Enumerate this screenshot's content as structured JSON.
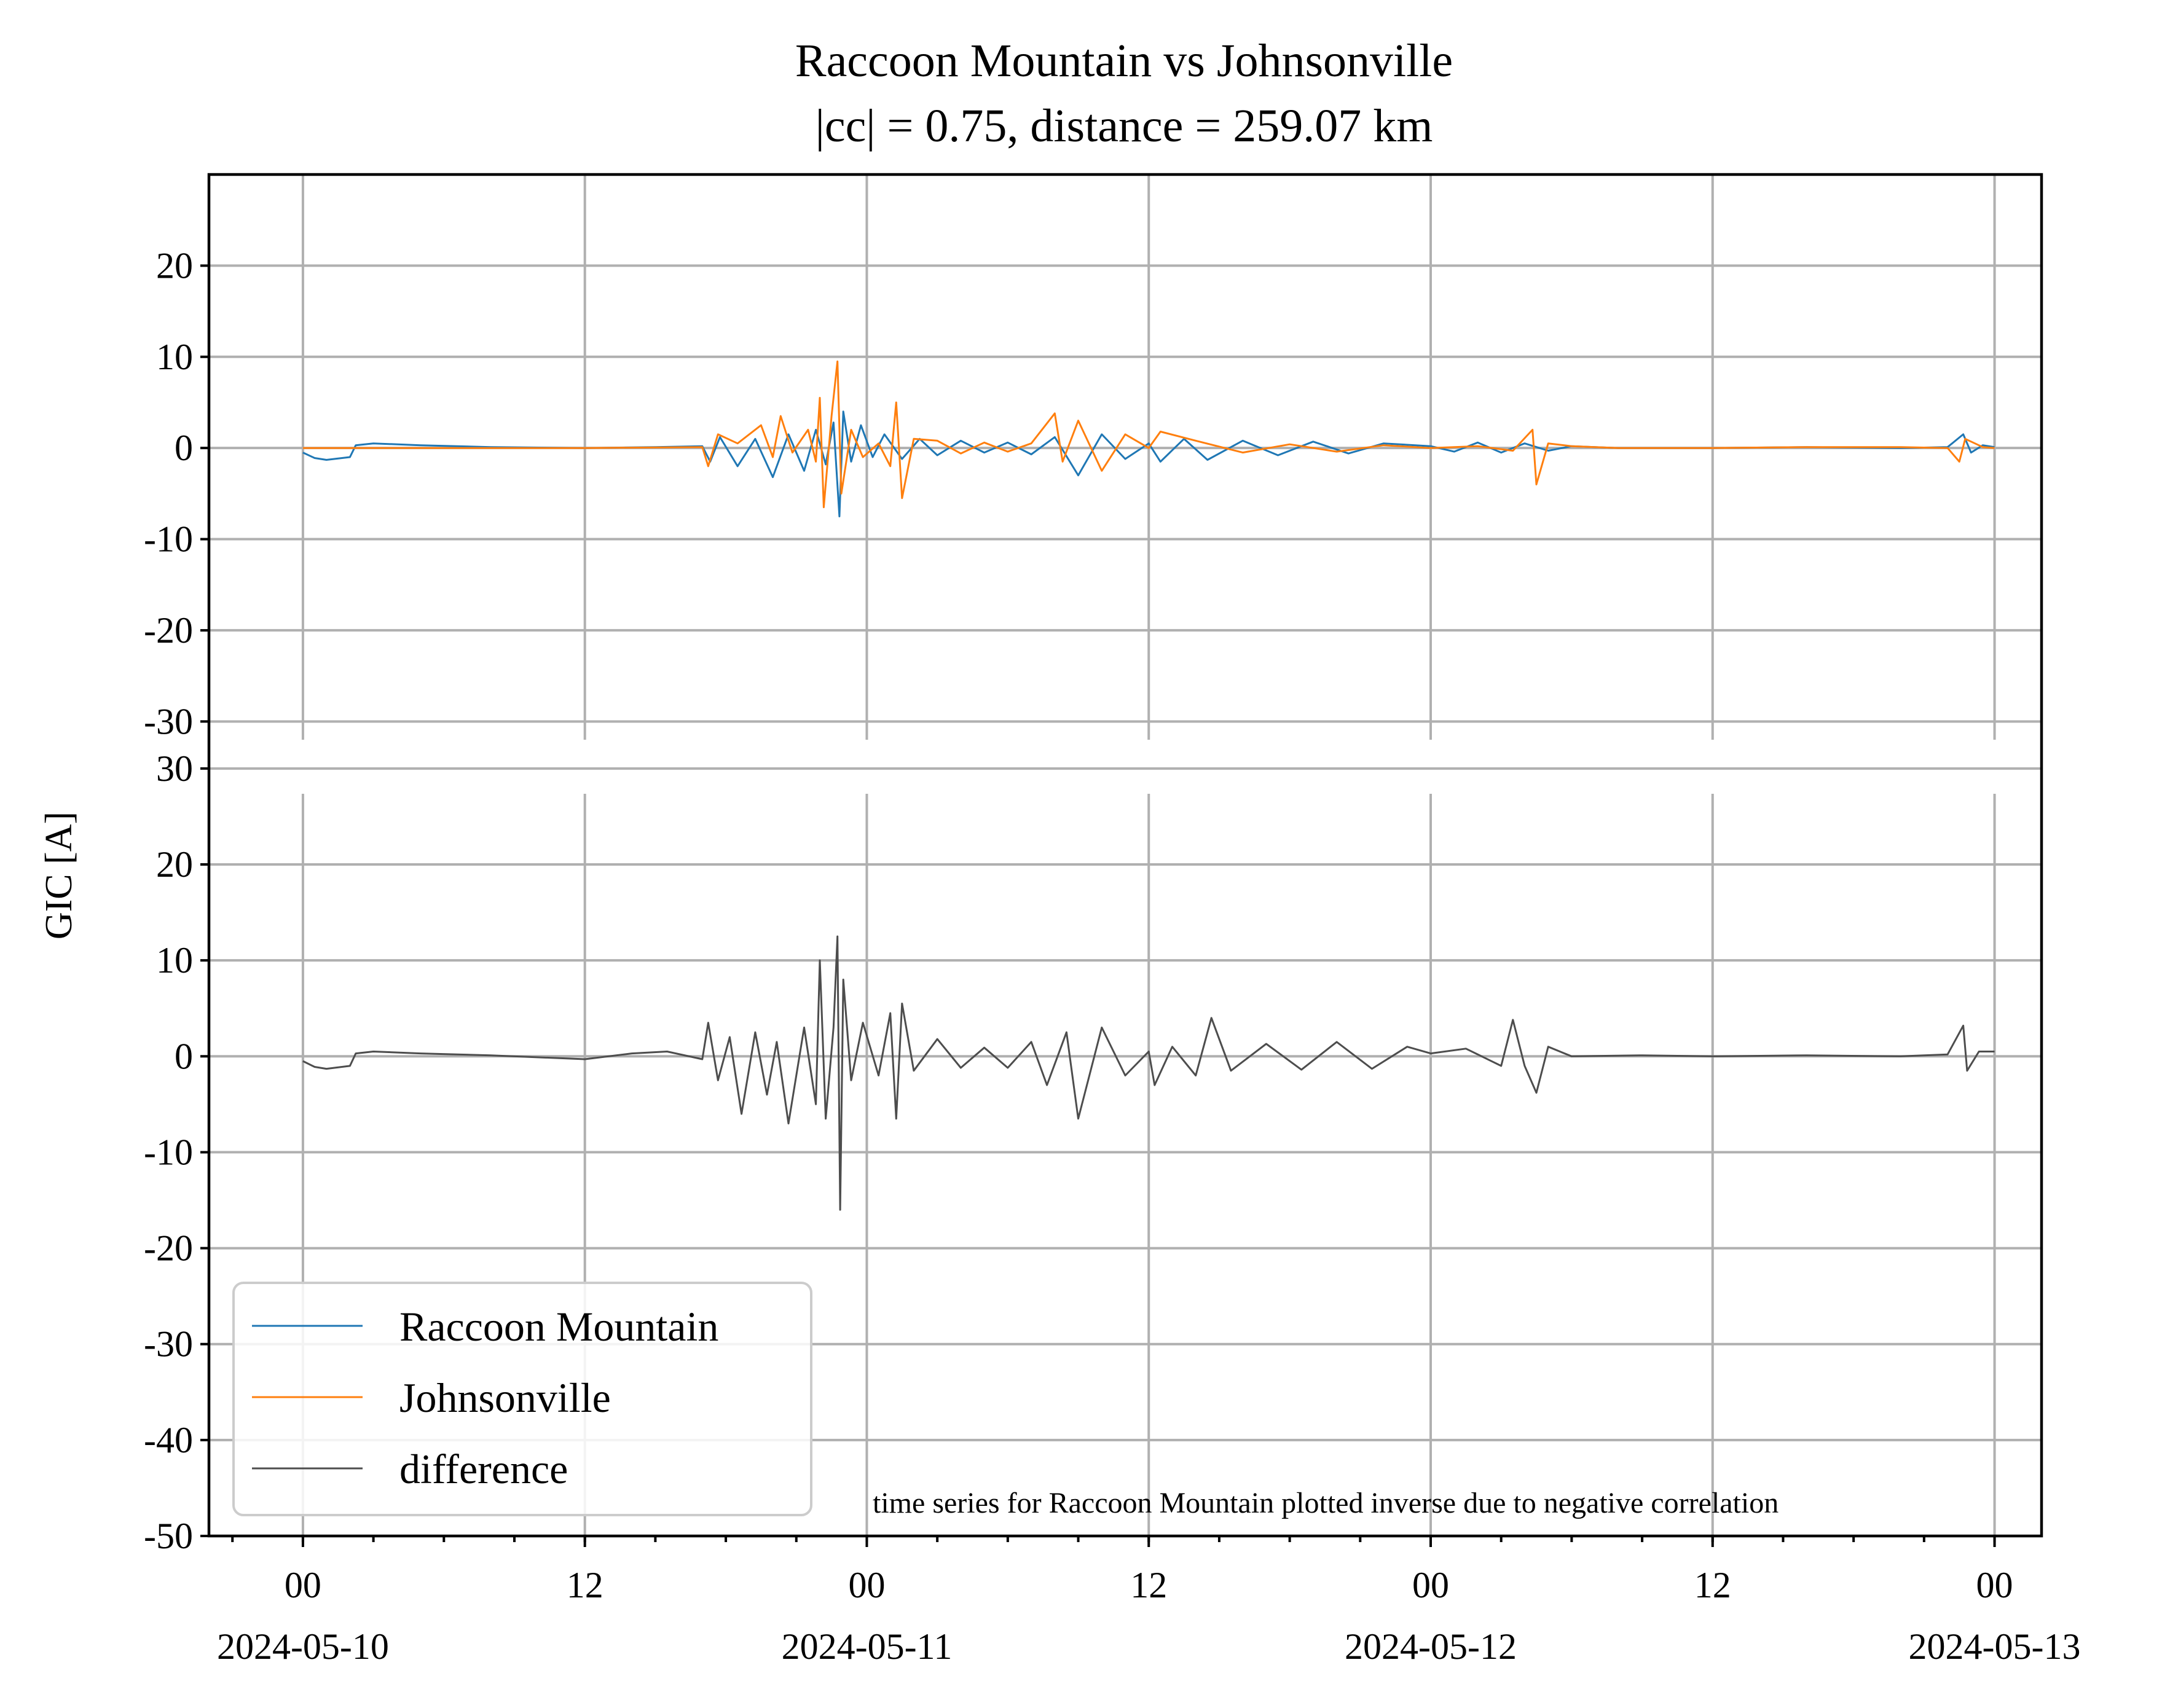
{
  "chart_data": {
    "type": "line",
    "title": "Raccoon Mountain vs Johnsonville",
    "subtitle": "|cc| = 0.75, distance = 259.07 km",
    "ylabel": "GIC [A]",
    "note": "time series for Raccoon Mountain plotted inverse due to negative correlation",
    "x_range": [
      "2024-05-09T20:00",
      "2024-05-13T02:00"
    ],
    "x_major_ticks": [
      {
        "value": "2024-05-10T00:00",
        "label": "00",
        "date": "2024-05-10"
      },
      {
        "value": "2024-05-10T12:00",
        "label": "12",
        "date": ""
      },
      {
        "value": "2024-05-11T00:00",
        "label": "00",
        "date": "2024-05-11"
      },
      {
        "value": "2024-05-11T12:00",
        "label": "12",
        "date": ""
      },
      {
        "value": "2024-05-12T00:00",
        "label": "00",
        "date": "2024-05-12"
      },
      {
        "value": "2024-05-12T12:00",
        "label": "12",
        "date": ""
      },
      {
        "value": "2024-05-13T00:00",
        "label": "00",
        "date": "2024-05-13"
      }
    ],
    "grid": true,
    "legend": {
      "placement": "lower-left",
      "entries": [
        {
          "label": "Raccoon Mountain",
          "color": "#1f77b4"
        },
        {
          "label": "Johnsonville",
          "color": "#ff7f0e"
        },
        {
          "label": "difference",
          "color": "#4d4d4d"
        }
      ]
    },
    "panels": [
      {
        "ylim": [
          -32,
          30
        ],
        "yticks": [
          20,
          10,
          0,
          -10,
          -20,
          -30
        ],
        "ytick_labels": [
          "20",
          "10",
          "0",
          "-10",
          "-20",
          "-30"
        ],
        "series": [
          {
            "name": "Raccoon Mountain",
            "color": "#1f77b4",
            "points": [
              [
                "2024-05-10T00:00",
                -0.5
              ],
              [
                "2024-05-10T00:30",
                -1.1
              ],
              [
                "2024-05-10T01:00",
                -1.3
              ],
              [
                "2024-05-10T02:00",
                -1.0
              ],
              [
                "2024-05-10T02:15",
                0.3
              ],
              [
                "2024-05-10T03:00",
                0.5
              ],
              [
                "2024-05-10T05:00",
                0.3
              ],
              [
                "2024-05-10T08:00",
                0.1
              ],
              [
                "2024-05-10T12:00",
                0.0
              ],
              [
                "2024-05-10T15:00",
                0.1
              ],
              [
                "2024-05-10T17:00",
                0.2
              ],
              [
                "2024-05-10T17:20",
                -1.5
              ],
              [
                "2024-05-10T17:45",
                1.2
              ],
              [
                "2024-05-10T18:30",
                -2.0
              ],
              [
                "2024-05-10T19:15",
                1.0
              ],
              [
                "2024-05-10T20:00",
                -3.2
              ],
              [
                "2024-05-10T20:40",
                1.5
              ],
              [
                "2024-05-10T21:20",
                -2.5
              ],
              [
                "2024-05-10T21:50",
                2.0
              ],
              [
                "2024-05-10T22:15",
                -1.8
              ],
              [
                "2024-05-10T22:35",
                2.8
              ],
              [
                "2024-05-10T22:50",
                -7.5
              ],
              [
                "2024-05-10T23:00",
                4.0
              ],
              [
                "2024-05-10T23:20",
                -1.5
              ],
              [
                "2024-05-10T23:45",
                2.5
              ],
              [
                "2024-05-11T00:15",
                -1.0
              ],
              [
                "2024-05-11T00:45",
                1.5
              ],
              [
                "2024-05-11T01:30",
                -1.2
              ],
              [
                "2024-05-11T02:15",
                1.0
              ],
              [
                "2024-05-11T03:00",
                -0.8
              ],
              [
                "2024-05-11T04:00",
                0.8
              ],
              [
                "2024-05-11T05:00",
                -0.5
              ],
              [
                "2024-05-11T06:00",
                0.6
              ],
              [
                "2024-05-11T07:00",
                -0.7
              ],
              [
                "2024-05-11T08:00",
                1.2
              ],
              [
                "2024-05-11T09:00",
                -3.0
              ],
              [
                "2024-05-11T10:00",
                1.5
              ],
              [
                "2024-05-11T11:00",
                -1.2
              ],
              [
                "2024-05-11T12:00",
                0.5
              ],
              [
                "2024-05-11T12:30",
                -1.5
              ],
              [
                "2024-05-11T13:30",
                1.0
              ],
              [
                "2024-05-11T14:30",
                -1.3
              ],
              [
                "2024-05-11T16:00",
                0.8
              ],
              [
                "2024-05-11T17:30",
                -0.8
              ],
              [
                "2024-05-11T19:00",
                0.7
              ],
              [
                "2024-05-11T20:30",
                -0.6
              ],
              [
                "2024-05-11T22:00",
                0.5
              ],
              [
                "2024-05-12T00:00",
                0.2
              ],
              [
                "2024-05-12T01:00",
                -0.4
              ],
              [
                "2024-05-12T02:00",
                0.6
              ],
              [
                "2024-05-12T03:00",
                -0.5
              ],
              [
                "2024-05-12T04:00",
                0.5
              ],
              [
                "2024-05-12T05:00",
                -0.3
              ],
              [
                "2024-05-12T06:00",
                0.2
              ],
              [
                "2024-05-12T08:00",
                0.0
              ],
              [
                "2024-05-12T12:00",
                0.0
              ],
              [
                "2024-05-12T16:00",
                0.1
              ],
              [
                "2024-05-12T20:00",
                0.0
              ],
              [
                "2024-05-12T22:00",
                0.1
              ],
              [
                "2024-05-12T22:40",
                1.5
              ],
              [
                "2024-05-12T23:00",
                -0.5
              ],
              [
                "2024-05-12T23:30",
                0.3
              ],
              [
                "2024-05-13T00:00",
                0.1
              ]
            ]
          },
          {
            "name": "Johnsonville",
            "color": "#ff7f0e",
            "points": [
              [
                "2024-05-10T00:00",
                0.0
              ],
              [
                "2024-05-10T06:00",
                0.0
              ],
              [
                "2024-05-10T12:00",
                0.0
              ],
              [
                "2024-05-10T17:00",
                0.1
              ],
              [
                "2024-05-10T17:15",
                -2.0
              ],
              [
                "2024-05-10T17:40",
                1.5
              ],
              [
                "2024-05-10T18:30",
                0.5
              ],
              [
                "2024-05-10T19:30",
                2.5
              ],
              [
                "2024-05-10T20:00",
                -1.0
              ],
              [
                "2024-05-10T20:20",
                3.5
              ],
              [
                "2024-05-10T20:50",
                -0.5
              ],
              [
                "2024-05-10T21:30",
                2.0
              ],
              [
                "2024-05-10T21:50",
                -1.5
              ],
              [
                "2024-05-10T22:00",
                5.5
              ],
              [
                "2024-05-10T22:10",
                -6.5
              ],
              [
                "2024-05-10T22:30",
                3.5
              ],
              [
                "2024-05-10T22:45",
                9.5
              ],
              [
                "2024-05-10T22:55",
                -5.0
              ],
              [
                "2024-05-10T23:20",
                2.0
              ],
              [
                "2024-05-10T23:50",
                -1.0
              ],
              [
                "2024-05-11T00:30",
                0.5
              ],
              [
                "2024-05-11T01:00",
                -2.0
              ],
              [
                "2024-05-11T01:15",
                5.0
              ],
              [
                "2024-05-11T01:30",
                -5.5
              ],
              [
                "2024-05-11T02:00",
                1.0
              ],
              [
                "2024-05-11T03:00",
                0.8
              ],
              [
                "2024-05-11T04:00",
                -0.6
              ],
              [
                "2024-05-11T05:00",
                0.6
              ],
              [
                "2024-05-11T06:00",
                -0.4
              ],
              [
                "2024-05-11T07:00",
                0.5
              ],
              [
                "2024-05-11T08:00",
                3.8
              ],
              [
                "2024-05-11T08:20",
                -1.5
              ],
              [
                "2024-05-11T09:00",
                3.0
              ],
              [
                "2024-05-11T10:00",
                -2.5
              ],
              [
                "2024-05-11T11:00",
                1.5
              ],
              [
                "2024-05-11T12:00",
                0.0
              ],
              [
                "2024-05-11T12:30",
                1.8
              ],
              [
                "2024-05-11T14:00",
                0.8
              ],
              [
                "2024-05-11T16:00",
                -0.5
              ],
              [
                "2024-05-11T18:00",
                0.4
              ],
              [
                "2024-05-11T20:00",
                -0.4
              ],
              [
                "2024-05-11T22:00",
                0.3
              ],
              [
                "2024-05-12T00:00",
                0.0
              ],
              [
                "2024-05-12T02:00",
                0.2
              ],
              [
                "2024-05-12T03:30",
                -0.3
              ],
              [
                "2024-05-12T04:20",
                2.0
              ],
              [
                "2024-05-12T04:30",
                -4.0
              ],
              [
                "2024-05-12T05:00",
                0.5
              ],
              [
                "2024-05-12T06:00",
                0.2
              ],
              [
                "2024-05-12T08:00",
                0.0
              ],
              [
                "2024-05-12T12:00",
                0.0
              ],
              [
                "2024-05-12T16:00",
                0.1
              ],
              [
                "2024-05-12T20:00",
                0.1
              ],
              [
                "2024-05-12T22:00",
                0.0
              ],
              [
                "2024-05-12T22:30",
                -1.5
              ],
              [
                "2024-05-12T22:45",
                1.0
              ],
              [
                "2024-05-12T23:30",
                0.1
              ],
              [
                "2024-05-13T00:00",
                0.0
              ]
            ]
          }
        ]
      },
      {
        "ylim": [
          -50,
          33
        ],
        "yticks": [
          30,
          20,
          10,
          0,
          -10,
          -20,
          -30,
          -40,
          -50
        ],
        "ytick_labels": [
          "30",
          "20",
          "10",
          "0",
          "-10",
          "-20",
          "-30",
          "-40",
          "-50"
        ],
        "series": [
          {
            "name": "difference",
            "color": "#4d4d4d",
            "points": [
              [
                "2024-05-10T00:00",
                -0.5
              ],
              [
                "2024-05-10T00:30",
                -1.1
              ],
              [
                "2024-05-10T01:00",
                -1.3
              ],
              [
                "2024-05-10T02:00",
                -1.0
              ],
              [
                "2024-05-10T02:15",
                0.3
              ],
              [
                "2024-05-10T03:00",
                0.5
              ],
              [
                "2024-05-10T05:00",
                0.3
              ],
              [
                "2024-05-10T08:00",
                0.1
              ],
              [
                "2024-05-10T12:00",
                -0.3
              ],
              [
                "2024-05-10T14:00",
                0.3
              ],
              [
                "2024-05-10T15:30",
                0.5
              ],
              [
                "2024-05-10T17:00",
                -0.3
              ],
              [
                "2024-05-10T17:15",
                3.5
              ],
              [
                "2024-05-10T17:40",
                -2.5
              ],
              [
                "2024-05-10T18:10",
                2.0
              ],
              [
                "2024-05-10T18:40",
                -6.0
              ],
              [
                "2024-05-10T19:15",
                2.5
              ],
              [
                "2024-05-10T19:45",
                -4.0
              ],
              [
                "2024-05-10T20:10",
                1.5
              ],
              [
                "2024-05-10T20:40",
                -7.0
              ],
              [
                "2024-05-10T21:20",
                3.0
              ],
              [
                "2024-05-10T21:50",
                -5.0
              ],
              [
                "2024-05-10T22:00",
                10.0
              ],
              [
                "2024-05-10T22:15",
                -6.5
              ],
              [
                "2024-05-10T22:35",
                3.0
              ],
              [
                "2024-05-10T22:45",
                12.5
              ],
              [
                "2024-05-10T22:52",
                -16.0
              ],
              [
                "2024-05-10T23:00",
                8.0
              ],
              [
                "2024-05-10T23:20",
                -2.5
              ],
              [
                "2024-05-10T23:50",
                3.5
              ],
              [
                "2024-05-11T00:30",
                -2.0
              ],
              [
                "2024-05-11T01:00",
                4.5
              ],
              [
                "2024-05-11T01:15",
                -6.5
              ],
              [
                "2024-05-11T01:30",
                5.5
              ],
              [
                "2024-05-11T02:00",
                -1.5
              ],
              [
                "2024-05-11T03:00",
                1.8
              ],
              [
                "2024-05-11T04:00",
                -1.2
              ],
              [
                "2024-05-11T05:00",
                0.9
              ],
              [
                "2024-05-11T06:00",
                -1.2
              ],
              [
                "2024-05-11T07:00",
                1.5
              ],
              [
                "2024-05-11T07:40",
                -3.0
              ],
              [
                "2024-05-11T08:30",
                2.5
              ],
              [
                "2024-05-11T09:00",
                -6.5
              ],
              [
                "2024-05-11T10:00",
                3.0
              ],
              [
                "2024-05-11T11:00",
                -2.0
              ],
              [
                "2024-05-11T12:00",
                0.5
              ],
              [
                "2024-05-11T12:15",
                -3.0
              ],
              [
                "2024-05-11T13:00",
                1.0
              ],
              [
                "2024-05-11T14:00",
                -2.0
              ],
              [
                "2024-05-11T14:40",
                4.0
              ],
              [
                "2024-05-11T15:30",
                -1.5
              ],
              [
                "2024-05-11T17:00",
                1.3
              ],
              [
                "2024-05-11T18:30",
                -1.4
              ],
              [
                "2024-05-11T20:00",
                1.5
              ],
              [
                "2024-05-11T21:30",
                -1.3
              ],
              [
                "2024-05-11T23:00",
                1.0
              ],
              [
                "2024-05-12T00:00",
                0.3
              ],
              [
                "2024-05-12T01:30",
                0.8
              ],
              [
                "2024-05-12T03:00",
                -1.0
              ],
              [
                "2024-05-12T03:30",
                3.8
              ],
              [
                "2024-05-12T04:00",
                -1.0
              ],
              [
                "2024-05-12T04:30",
                -3.8
              ],
              [
                "2024-05-12T05:00",
                1.0
              ],
              [
                "2024-05-12T06:00",
                0.0
              ],
              [
                "2024-05-12T09:00",
                0.1
              ],
              [
                "2024-05-12T12:00",
                0.0
              ],
              [
                "2024-05-12T16:00",
                0.1
              ],
              [
                "2024-05-12T20:00",
                0.0
              ],
              [
                "2024-05-12T22:00",
                0.2
              ],
              [
                "2024-05-12T22:40",
                3.2
              ],
              [
                "2024-05-12T22:50",
                -1.5
              ],
              [
                "2024-05-12T23:20",
                0.5
              ],
              [
                "2024-05-13T00:00",
                0.5
              ]
            ]
          }
        ]
      }
    ]
  }
}
